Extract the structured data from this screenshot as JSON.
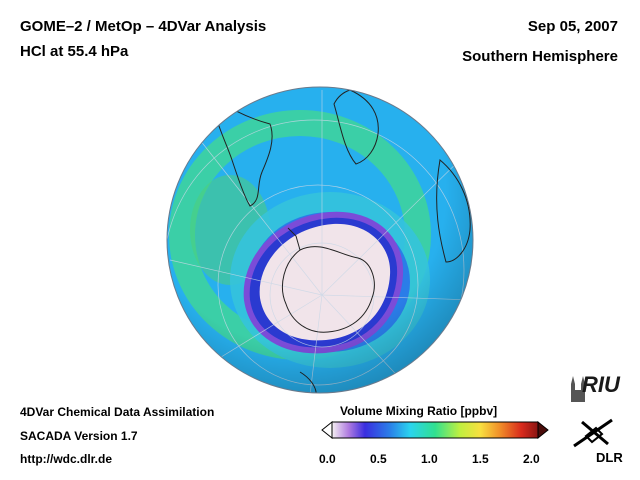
{
  "header": {
    "title_line1": "GOME–2 / MetOp – 4DVar Analysis",
    "title_line2": "HCl at 55.4 hPa",
    "date": "Sep 05, 2007",
    "region": "Southern Hemisphere"
  },
  "footer": {
    "line1": "4DVar Chemical Data Assimilation",
    "line2": "SACADA Version 1.7",
    "line3": "http://wdc.dlr.de"
  },
  "colorbar": {
    "title": "Volume Mixing Ratio [ppbv]",
    "ticks": [
      "0.0",
      "0.5",
      "1.0",
      "1.5",
      "2.0"
    ],
    "min": 0.0,
    "max": 2.0
  },
  "logos": {
    "riu": "RIU",
    "dlr": "DLR"
  },
  "colors": {
    "ozone_hole_core": "#f3e6ea",
    "ring_purple": "#5a3cd0",
    "background_field": "#2fb8f0",
    "green_band": "#40d890"
  }
}
